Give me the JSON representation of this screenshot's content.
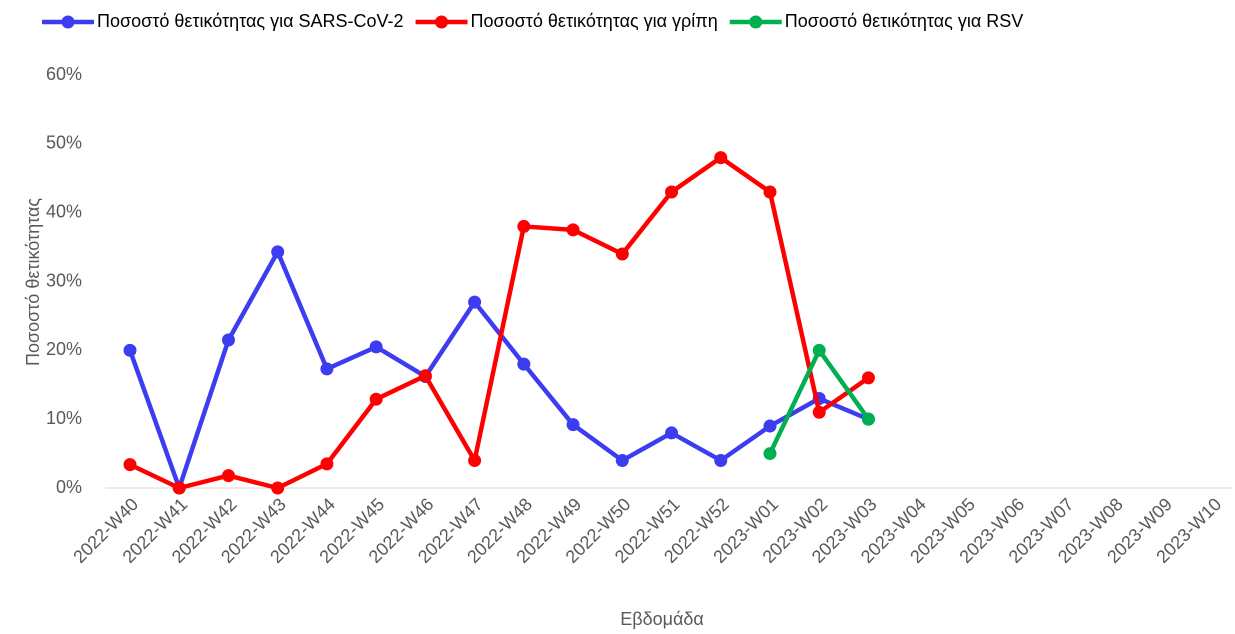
{
  "chart_data": {
    "type": "line",
    "x_label": "Εβδομάδα",
    "y_label": "Ποσοστό θετικότητας",
    "categories": [
      "2022-W40",
      "2022-W41",
      "2022-W42",
      "2022-W43",
      "2022-W44",
      "2022-W45",
      "2022-W46",
      "2022-W47",
      "2022-W48",
      "2022-W49",
      "2022-W50",
      "2022-W51",
      "2022-W52",
      "2023-W01",
      "2023-W02",
      "2023-W03",
      "2023-W04",
      "2023-W05",
      "2023-W06",
      "2023-W07",
      "2023-W08",
      "2023-W09",
      "2023-W10"
    ],
    "series": [
      {
        "name": "Ποσοστό θετικότητας για SARS-CoV-2",
        "color": "#3c3cf0",
        "values": [
          20,
          0,
          21.5,
          34.3,
          17.3,
          20.5,
          16.2,
          27,
          18,
          9.2,
          4,
          8,
          4,
          9,
          13,
          10,
          null,
          null,
          null,
          null,
          null,
          null,
          null
        ]
      },
      {
        "name": "Ποσοστό θετικότητας για γρίπη",
        "color": "#ff0000",
        "values": [
          3.4,
          0,
          1.8,
          0,
          3.5,
          12.9,
          16.3,
          4,
          38,
          37.5,
          34,
          43,
          48,
          43,
          11,
          16,
          null,
          null,
          null,
          null,
          null,
          null,
          null
        ]
      },
      {
        "name": "Ποσοστό θετικότητας για RSV",
        "color": "#00b050",
        "values": [
          null,
          null,
          null,
          null,
          null,
          null,
          null,
          null,
          null,
          null,
          null,
          null,
          null,
          5,
          20,
          10,
          null,
          null,
          null,
          null,
          null,
          null,
          null
        ]
      }
    ],
    "ylim": [
      0,
      60
    ],
    "yticks": [
      {
        "value": 0,
        "label": "0%"
      },
      {
        "value": 10,
        "label": "10%"
      },
      {
        "value": 20,
        "label": "20%"
      },
      {
        "value": 30,
        "label": "30%"
      },
      {
        "value": 40,
        "label": "40%"
      },
      {
        "value": 50,
        "label": "50%"
      },
      {
        "value": 60,
        "label": "60%"
      }
    ],
    "legend": "top"
  }
}
